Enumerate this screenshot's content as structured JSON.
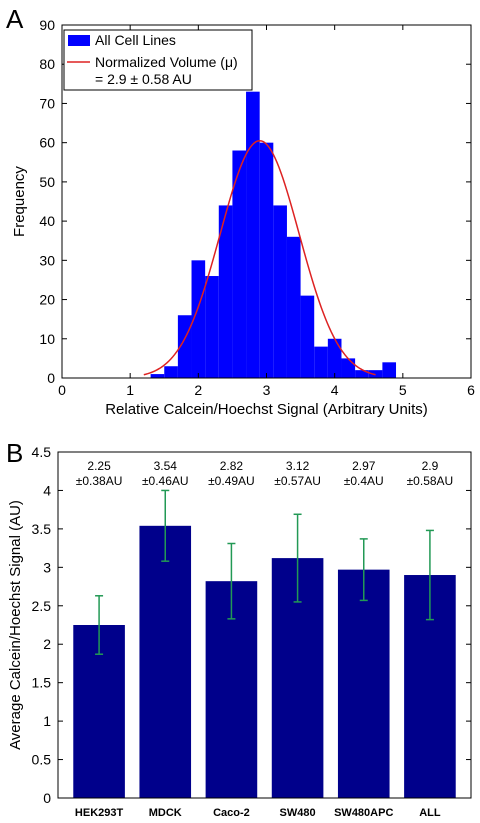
{
  "chart_data": [
    {
      "panel": "A",
      "type": "bar",
      "subtype": "histogram",
      "xlabel": "Relative Calcein/Hoechst Signal (Arbitrary Units)",
      "ylabel": "Frequency",
      "xlim": [
        0,
        6
      ],
      "ylim": [
        0,
        90
      ],
      "xticks": [
        0,
        1,
        2,
        3,
        4,
        5,
        6
      ],
      "yticks": [
        0,
        10,
        20,
        30,
        40,
        50,
        60,
        70,
        80,
        90
      ],
      "bin_width": 0.2,
      "bin_starts": [
        1.3,
        1.5,
        1.7,
        1.9,
        2.1,
        2.3,
        2.5,
        2.7,
        2.9,
        3.1,
        3.3,
        3.5,
        3.7,
        3.9,
        4.1,
        4.3,
        4.5,
        4.7
      ],
      "values": [
        1,
        3,
        16,
        30,
        26,
        44,
        58,
        73,
        60,
        44,
        36,
        21,
        8,
        10,
        5,
        2,
        2,
        4
      ],
      "bar_color": "#0000ff",
      "curve": {
        "type": "normal",
        "mean": 2.9,
        "sd": 0.58,
        "peak": 60.5,
        "color": "#dd2222",
        "x_range": [
          1.2,
          4.6
        ]
      },
      "legend": {
        "placement": "top-left",
        "entries": [
          "All Cell Lines",
          "Normalized Volume (μ)"
        ],
        "extra_line": "= 2.9 ± 0.58 AU"
      },
      "grid": false
    },
    {
      "panel": "B",
      "type": "bar",
      "categories": [
        "HEK293T",
        "MDCK",
        "Caco-2",
        "SW480",
        "SW480APC",
        "ALL"
      ],
      "values": [
        2.25,
        3.54,
        2.82,
        3.12,
        2.97,
        2.9
      ],
      "errors": [
        0.38,
        0.46,
        0.49,
        0.57,
        0.4,
        0.58
      ],
      "annotations": [
        [
          "2.25",
          "±0.38AU"
        ],
        [
          "3.54",
          "±0.46AU"
        ],
        [
          "2.82",
          "±0.49AU"
        ],
        [
          "3.12",
          "±0.57AU"
        ],
        [
          "2.97",
          "±0.4AU"
        ],
        [
          "2.9",
          "±0.58AU"
        ]
      ],
      "ylabel": "Average Calcein/Hoechst Signal (AU)",
      "xlabel": "",
      "ylim": [
        0,
        4.5
      ],
      "yticks": [
        "0",
        "0.5",
        "1",
        "1.5",
        "2",
        "2.5",
        "3",
        "3.5",
        "4",
        "4.5"
      ],
      "bar_color": "#00008b",
      "error_color": "#229955",
      "grid": false
    }
  ]
}
